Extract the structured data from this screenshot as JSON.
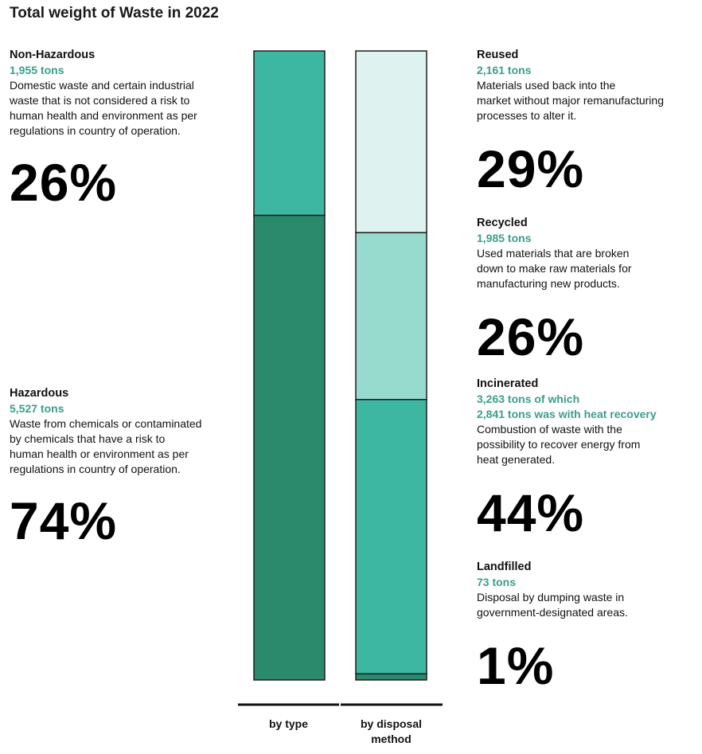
{
  "title": "Total weight of Waste in 2022",
  "colors": {
    "hazardous": "#2b8a6b",
    "non_hazardous": "#3db6a2",
    "reused": "#def2ef",
    "recycled": "#97dbcf",
    "incinerated": "#3db6a2",
    "landfilled": "#2b8a6b",
    "accent_text": "#3a9e8c"
  },
  "left": [
    {
      "name": "Non-Hazardous",
      "tons": "1,955 tons",
      "description": "Domestic waste and certain industrial\nwaste that is not considered a risk to\nhuman health and environment as per\nregulations in country of operation.",
      "percent": "26%"
    },
    {
      "name": "Hazardous",
      "tons": "5,527 tons",
      "description": "Waste from chemicals or contaminated\nby chemicals that have a risk to\nhuman health or environment as per\nregulations in country of operation.",
      "percent": "74%"
    }
  ],
  "right": [
    {
      "name": "Reused",
      "tons": "2,161 tons",
      "description": "Materials used back into the\nmarket without major remanufacturing\nprocesses to alter it.",
      "percent": "29%"
    },
    {
      "name": "Recycled",
      "tons": "1,985 tons",
      "description": "Used materials that are broken\ndown to make raw materials for\nmanufacturing new products.",
      "percent": "26%"
    },
    {
      "name": "Incinerated",
      "tons": "3,263 tons of which",
      "tons2": "2,841 tons was with heat recovery",
      "description": "Combustion of waste with the\npossibility to recover energy from\nheat generated.",
      "percent": "44%"
    },
    {
      "name": "Landfilled",
      "tons": "73 tons",
      "description": "Disposal by dumping waste in\ngovernment-designated areas.",
      "percent": "1%"
    }
  ],
  "chart_data": {
    "type": "bar",
    "stacked": true,
    "title": "Total weight of Waste in 2022",
    "categories": [
      "by type",
      "by disposal\nmethod"
    ],
    "unit": "tons",
    "series": [
      {
        "name": "Hazardous",
        "category": "by type",
        "value": 5527,
        "percent": 74
      },
      {
        "name": "Non-Hazardous",
        "category": "by type",
        "value": 1955,
        "percent": 26
      },
      {
        "name": "Landfilled",
        "category": "by disposal\nmethod",
        "value": 73,
        "percent": 1
      },
      {
        "name": "Incinerated",
        "category": "by disposal\nmethod",
        "value": 3263,
        "percent": 44
      },
      {
        "name": "Recycled",
        "category": "by disposal\nmethod",
        "value": 1985,
        "percent": 26
      },
      {
        "name": "Reused",
        "category": "by disposal\nmethod",
        "value": 2161,
        "percent": 29
      }
    ]
  }
}
